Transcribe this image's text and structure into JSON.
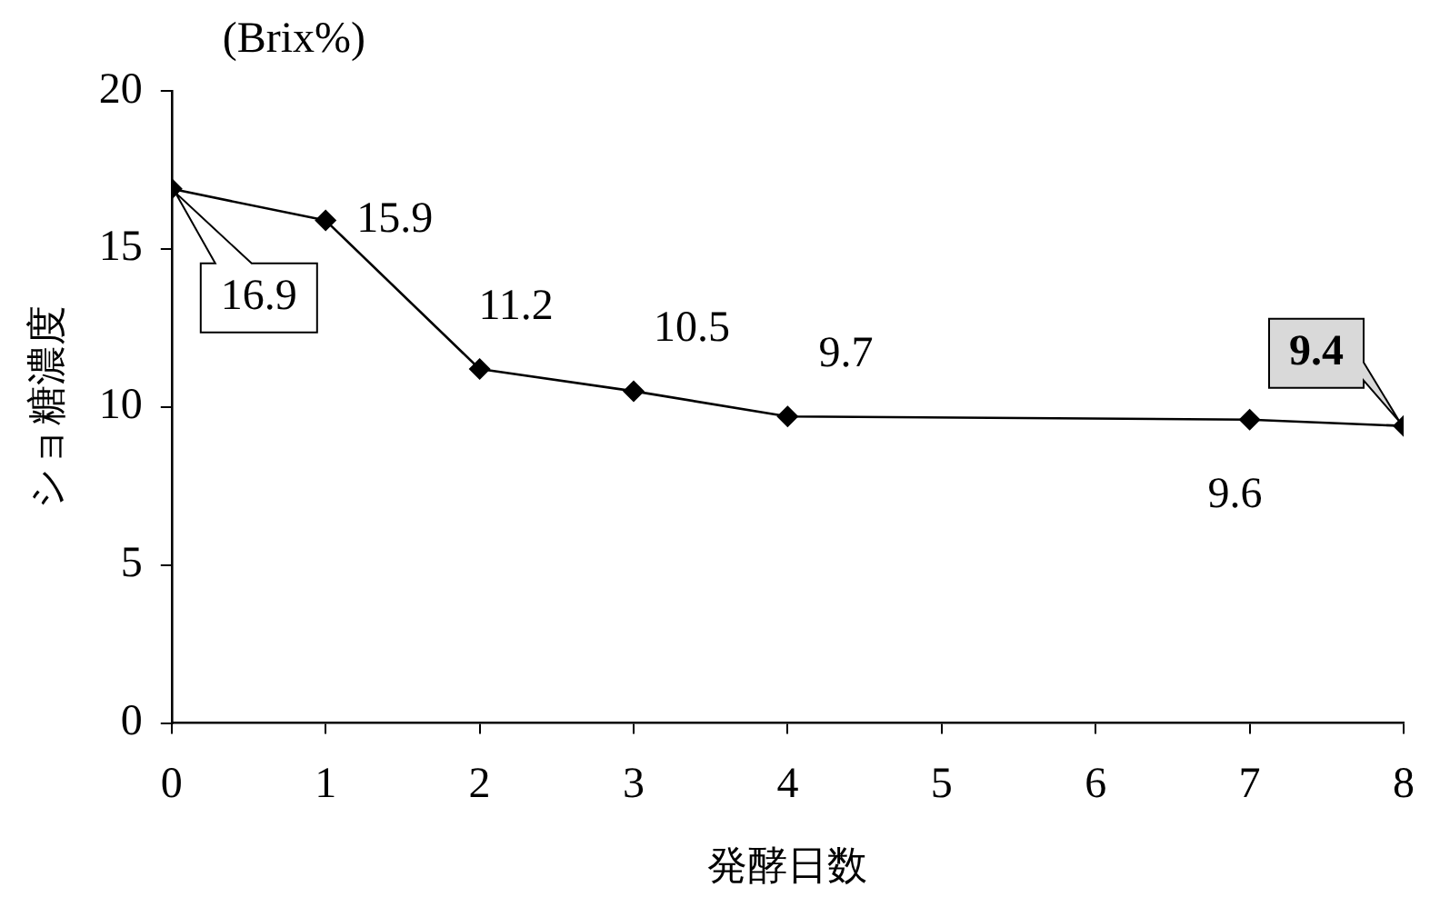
{
  "chart_data": {
    "type": "line",
    "xlabel": "発酵日数",
    "ylabel": "ショ糖濃度",
    "annotations": [
      "(Brix%)"
    ],
    "x": [
      0,
      1,
      2,
      3,
      4,
      7,
      8
    ],
    "series": [
      {
        "color": "#000000",
        "values": [
          16.9,
          15.9,
          11.2,
          10.5,
          9.7,
          9.6,
          9.4
        ]
      }
    ],
    "xlim": [
      0,
      8
    ],
    "xticks": [
      0,
      1,
      2,
      3,
      4,
      5,
      6,
      7,
      8
    ],
    "ylim": [
      0,
      20
    ],
    "yticks": [
      0,
      5,
      10,
      15,
      20
    ],
    "grid": false,
    "legend": false,
    "marker": "diamond",
    "line_style": "solid",
    "data_labels": true
  }
}
